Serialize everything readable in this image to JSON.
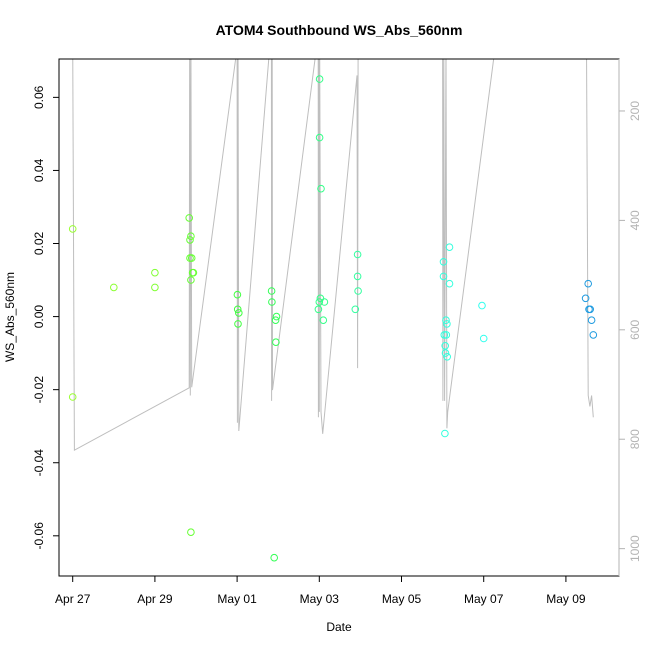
{
  "chart_data": {
    "type": "scatter",
    "title": "ATOM4 Southbound WS_Abs_560nm",
    "xlabel": "Date",
    "ylabel": "WS_Abs_560nm",
    "x_axis": {
      "type": "date",
      "range": [
        "2018-04-26T16:00",
        "2018-05-10T07:00"
      ],
      "ticks": [
        {
          "date": "2018-04-27",
          "label": "Apr 27"
        },
        {
          "date": "2018-04-29",
          "label": "Apr 29"
        },
        {
          "date": "2018-05-01",
          "label": "May 01"
        },
        {
          "date": "2018-05-03",
          "label": "May 03"
        },
        {
          "date": "2018-05-05",
          "label": "May 05"
        },
        {
          "date": "2018-05-07",
          "label": "May 07"
        },
        {
          "date": "2018-05-09",
          "label": "May 09"
        }
      ]
    },
    "y_axis": {
      "range": [
        -0.071,
        0.0705
      ],
      "ticks": [
        {
          "value": -0.06,
          "label": "-0.06"
        },
        {
          "value": -0.04,
          "label": "-0.04"
        },
        {
          "value": -0.02,
          "label": "-0.02"
        },
        {
          "value": 0.0,
          "label": "0.00"
        },
        {
          "value": 0.02,
          "label": "0.02"
        },
        {
          "value": 0.04,
          "label": "0.04"
        },
        {
          "value": 0.06,
          "label": "0.06"
        }
      ]
    },
    "y2_axis": {
      "reversed": true,
      "range": [
        1050,
        105
      ],
      "color": "#b3b3b3",
      "ticks": [
        {
          "value": 200,
          "label": "200"
        },
        {
          "value": 400,
          "label": "400"
        },
        {
          "value": 600,
          "label": "600"
        },
        {
          "value": 800,
          "label": "800"
        },
        {
          "value": 1000,
          "label": "1000"
        }
      ]
    },
    "grid": false,
    "legend": "none",
    "points": [
      {
        "x": "2018-04-27T00:00",
        "y": 0.024,
        "color": "#9aff33"
      },
      {
        "x": "2018-04-27T00:00",
        "y": -0.022,
        "color": "#9aff33"
      },
      {
        "x": "2018-04-28T00:00",
        "y": 0.008,
        "color": "#8cff33"
      },
      {
        "x": "2018-04-29T00:00",
        "y": 0.012,
        "color": "#80ff33"
      },
      {
        "x": "2018-04-29T00:00",
        "y": 0.008,
        "color": "#80ff33"
      },
      {
        "x": "2018-04-29T20:00",
        "y": 0.027,
        "color": "#66ff33"
      },
      {
        "x": "2018-04-29T20:30",
        "y": 0.021,
        "color": "#66ff33"
      },
      {
        "x": "2018-04-29T21:00",
        "y": 0.022,
        "color": "#66ff33"
      },
      {
        "x": "2018-04-29T20:30",
        "y": 0.016,
        "color": "#66ff33"
      },
      {
        "x": "2018-04-29T21:30",
        "y": 0.016,
        "color": "#66ff33"
      },
      {
        "x": "2018-04-29T21:00",
        "y": 0.01,
        "color": "#66ff33"
      },
      {
        "x": "2018-04-29T22:00",
        "y": 0.012,
        "color": "#66ff33"
      },
      {
        "x": "2018-04-29T22:30",
        "y": 0.012,
        "color": "#66ff33"
      },
      {
        "x": "2018-04-29T21:00",
        "y": -0.059,
        "color": "#66ff33"
      },
      {
        "x": "2018-05-01T00:10",
        "y": 0.006,
        "color": "#40ff40"
      },
      {
        "x": "2018-05-01T00:20",
        "y": 0.002,
        "color": "#40ff40"
      },
      {
        "x": "2018-05-01T01:00",
        "y": 0.001,
        "color": "#40ff40"
      },
      {
        "x": "2018-05-01T00:30",
        "y": -0.002,
        "color": "#40ff40"
      },
      {
        "x": "2018-05-01T20:10",
        "y": 0.007,
        "color": "#33ff55"
      },
      {
        "x": "2018-05-01T20:20",
        "y": 0.004,
        "color": "#33ff55"
      },
      {
        "x": "2018-05-01T22:30",
        "y": -0.001,
        "color": "#33ff55"
      },
      {
        "x": "2018-05-01T23:00",
        "y": 0.0,
        "color": "#33ff55"
      },
      {
        "x": "2018-05-01T22:40",
        "y": -0.007,
        "color": "#33ff55"
      },
      {
        "x": "2018-05-01T21:40",
        "y": -0.066,
        "color": "#33ff55"
      },
      {
        "x": "2018-05-03T00:10",
        "y": 0.065,
        "color": "#33ff88"
      },
      {
        "x": "2018-05-03T00:10",
        "y": 0.049,
        "color": "#33ff88"
      },
      {
        "x": "2018-05-03T01:00",
        "y": 0.035,
        "color": "#33ff88"
      },
      {
        "x": "2018-05-03T00:00",
        "y": 0.004,
        "color": "#33ff88"
      },
      {
        "x": "2018-05-03T00:40",
        "y": 0.005,
        "color": "#33ff88"
      },
      {
        "x": "2018-05-03T03:00",
        "y": 0.004,
        "color": "#33ff88"
      },
      {
        "x": "2018-05-02T23:30",
        "y": 0.002,
        "color": "#33ff88"
      },
      {
        "x": "2018-05-03T02:20",
        "y": -0.001,
        "color": "#33ff88"
      },
      {
        "x": "2018-05-03T22:20",
        "y": 0.017,
        "color": "#33ffa0"
      },
      {
        "x": "2018-05-03T22:20",
        "y": 0.011,
        "color": "#33ffa0"
      },
      {
        "x": "2018-05-03T22:40",
        "y": 0.007,
        "color": "#33ffa0"
      },
      {
        "x": "2018-05-03T21:00",
        "y": 0.002,
        "color": "#33ffa0"
      },
      {
        "x": "2018-05-06T00:30",
        "y": 0.015,
        "color": "#33ffdd"
      },
      {
        "x": "2018-05-06T00:30",
        "y": 0.011,
        "color": "#33ffdd"
      },
      {
        "x": "2018-05-06T04:00",
        "y": 0.019,
        "color": "#33ffdd"
      },
      {
        "x": "2018-05-06T04:00",
        "y": 0.009,
        "color": "#33ffdd"
      },
      {
        "x": "2018-05-06T02:00",
        "y": -0.001,
        "color": "#33ffdd"
      },
      {
        "x": "2018-05-06T02:30",
        "y": -0.002,
        "color": "#33ffdd"
      },
      {
        "x": "2018-05-06T01:00",
        "y": -0.005,
        "color": "#33ffdd"
      },
      {
        "x": "2018-05-06T02:10",
        "y": -0.005,
        "color": "#33ffdd"
      },
      {
        "x": "2018-05-06T01:30",
        "y": -0.008,
        "color": "#33ffdd"
      },
      {
        "x": "2018-05-06T01:40",
        "y": -0.01,
        "color": "#33ffdd"
      },
      {
        "x": "2018-05-06T02:40",
        "y": -0.011,
        "color": "#33ffdd"
      },
      {
        "x": "2018-05-06T01:20",
        "y": -0.032,
        "color": "#33ffdd"
      },
      {
        "x": "2018-05-06T23:00",
        "y": 0.003,
        "color": "#33ffee"
      },
      {
        "x": "2018-05-07T00:00",
        "y": -0.006,
        "color": "#33ffee"
      },
      {
        "x": "2018-05-09T13:00",
        "y": 0.009,
        "color": "#1f9be0"
      },
      {
        "x": "2018-05-09T11:30",
        "y": 0.005,
        "color": "#1f9be0"
      },
      {
        "x": "2018-05-09T13:30",
        "y": 0.002,
        "color": "#1f9be0"
      },
      {
        "x": "2018-05-09T14:10",
        "y": 0.002,
        "color": "#1f9be0"
      },
      {
        "x": "2018-05-09T15:00",
        "y": -0.001,
        "color": "#1f9be0"
      },
      {
        "x": "2018-05-09T16:00",
        "y": -0.005,
        "color": "#1f9be0"
      }
    ],
    "depth_line": {
      "axis": "y2",
      "color": "#bebebe",
      "points": [
        {
          "x": "2018-04-27T00:00",
          "y": 75
        },
        {
          "x": "2018-04-27T01:00",
          "y": 820
        },
        {
          "x": "2018-04-29T00:00",
          "y": 740
        },
        {
          "x": "2018-04-29T20:00",
          "y": 706
        },
        {
          "x": "2018-04-29T20:20",
          "y": 40
        },
        {
          "x": "2018-04-29T20:40",
          "y": 720
        },
        {
          "x": "2018-04-29T21:00",
          "y": 60
        },
        {
          "x": "2018-04-29T21:30",
          "y": 705
        },
        {
          "x": "2018-05-01T00:00",
          "y": 85
        },
        {
          "x": "2018-05-01T00:10",
          "y": 770
        },
        {
          "x": "2018-05-01T00:30",
          "y": 40
        },
        {
          "x": "2018-05-01T01:00",
          "y": 785
        },
        {
          "x": "2018-05-01T20:00",
          "y": 45
        },
        {
          "x": "2018-05-01T20:10",
          "y": 730
        },
        {
          "x": "2018-05-01T20:30",
          "y": 70
        },
        {
          "x": "2018-05-01T20:40",
          "y": 710
        },
        {
          "x": "2018-05-02T23:20",
          "y": 60
        },
        {
          "x": "2018-05-02T23:30",
          "y": 760
        },
        {
          "x": "2018-05-02T23:40",
          "y": 80
        },
        {
          "x": "2018-05-03T00:00",
          "y": 750
        },
        {
          "x": "2018-05-03T00:10",
          "y": 50
        },
        {
          "x": "2018-05-03T01:00",
          "y": 750
        },
        {
          "x": "2018-05-03T02:00",
          "y": 790
        },
        {
          "x": "2018-05-03T22:00",
          "y": 135
        },
        {
          "x": "2018-05-03T22:20",
          "y": 670
        },
        {
          "x": "2018-05-03T22:40",
          "y": 90
        },
        {
          "x": "2018-05-06T00:00",
          "y": 60
        },
        {
          "x": "2018-05-06T00:10",
          "y": 730
        },
        {
          "x": "2018-05-06T00:40",
          "y": 80
        },
        {
          "x": "2018-05-06T01:10",
          "y": 730
        },
        {
          "x": "2018-05-06T02:00",
          "y": 80
        },
        {
          "x": "2018-05-06T02:30",
          "y": 780
        },
        {
          "x": "2018-05-06T03:00",
          "y": 750
        },
        {
          "x": "2018-05-07T06:00",
          "y": 100
        },
        {
          "x": "2018-05-09T12:00",
          "y": 80
        },
        {
          "x": "2018-05-09T13:00",
          "y": 720
        },
        {
          "x": "2018-05-09T14:00",
          "y": 740
        },
        {
          "x": "2018-05-09T15:00",
          "y": 720
        },
        {
          "x": "2018-05-09T16:00",
          "y": 760
        }
      ]
    }
  }
}
